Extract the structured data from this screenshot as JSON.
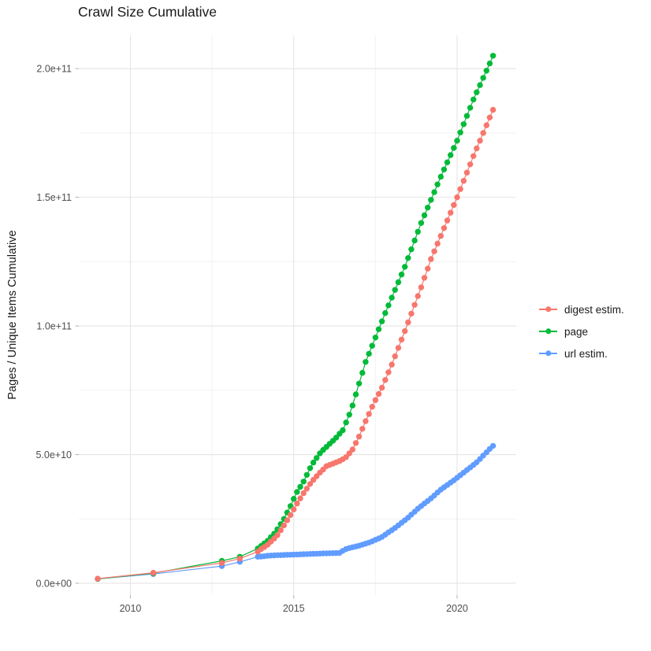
{
  "chart": {
    "title": "Crawl Size Cumulative",
    "ylabel": "Pages / Unique Items Cumulative"
  },
  "chart_data": {
    "type": "scatter",
    "title": "Crawl Size Cumulative",
    "xlabel": "",
    "ylabel": "Pages / Unique Items Cumulative",
    "grid": true,
    "legend_position": "right",
    "value_unit": "1e9 pages (values below are billions)",
    "colors": {
      "grid_major": "#e4e4e4",
      "grid_minor": "#f2f2f2",
      "tick_mark": "#b8b8b8",
      "tick_label": "#4d4d4d",
      "text": "#1a1a1a",
      "background": "#ffffff"
    },
    "x_axis": {
      "domain": [
        2008.42,
        2021.81
      ],
      "major_ticks": [
        {
          "value": 2010,
          "label": "2010"
        },
        {
          "value": 2015,
          "label": "2015"
        },
        {
          "value": 2020,
          "label": "2020"
        }
      ],
      "minor_gridlines": [
        2012.5,
        2017.5
      ]
    },
    "y_axis": {
      "domain": [
        -4.6,
        212.9
      ],
      "major_ticks": [
        {
          "value": 0,
          "label": "0.0e+00"
        },
        {
          "value": 50,
          "label": "5.0e+10"
        },
        {
          "value": 100,
          "label": "1.0e+11"
        },
        {
          "value": 150,
          "label": "1.5e+11"
        },
        {
          "value": 200,
          "label": "2.0e+11"
        }
      ],
      "minor_gridlines": [
        25,
        75,
        125,
        175
      ]
    },
    "z_order": [
      2,
      1,
      0
    ],
    "series": [
      {
        "name": "digest estim.",
        "color": "#F8766D",
        "points": [
          [
            2009,
            1.8
          ],
          [
            2010.7,
            4.1
          ],
          [
            2012.8,
            7.9
          ],
          [
            2013.35,
            9.6
          ],
          [
            2013.9,
            12.3
          ],
          [
            2014.0,
            13.3
          ],
          [
            2014.1,
            14.1
          ],
          [
            2014.2,
            15
          ],
          [
            2014.3,
            16.2
          ],
          [
            2014.4,
            17.4
          ],
          [
            2014.5,
            18.7
          ],
          [
            2014.6,
            20.6
          ],
          [
            2014.7,
            22.5
          ],
          [
            2014.8,
            24.5
          ],
          [
            2014.9,
            26.5
          ],
          [
            2015.0,
            28.7
          ],
          [
            2015.1,
            31
          ],
          [
            2015.2,
            33
          ],
          [
            2015.3,
            35
          ],
          [
            2015.4,
            36.8
          ],
          [
            2015.5,
            38.6
          ],
          [
            2015.6,
            40.2
          ],
          [
            2015.7,
            41.6
          ],
          [
            2015.8,
            43
          ],
          [
            2015.9,
            44.2
          ],
          [
            2016.0,
            45.5
          ],
          [
            2016.1,
            46
          ],
          [
            2016.2,
            46.5
          ],
          [
            2016.3,
            47
          ],
          [
            2016.4,
            47.5
          ],
          [
            2016.5,
            48.2
          ],
          [
            2016.6,
            49
          ],
          [
            2016.7,
            50.5
          ],
          [
            2016.8,
            52
          ],
          [
            2016.9,
            54.5
          ],
          [
            2017.0,
            57
          ],
          [
            2017.1,
            60
          ],
          [
            2017.2,
            63
          ],
          [
            2017.3,
            65.8
          ],
          [
            2017.4,
            68.6
          ],
          [
            2017.5,
            71.2
          ],
          [
            2017.6,
            73.6
          ],
          [
            2017.7,
            76
          ],
          [
            2017.8,
            79
          ],
          [
            2017.9,
            82
          ],
          [
            2018.0,
            85
          ],
          [
            2018.1,
            88.2
          ],
          [
            2018.2,
            91.5
          ],
          [
            2018.3,
            94.7
          ],
          [
            2018.4,
            98
          ],
          [
            2018.5,
            101.4
          ],
          [
            2018.6,
            104.8
          ],
          [
            2018.7,
            108.2
          ],
          [
            2018.8,
            111.6
          ],
          [
            2018.9,
            115
          ],
          [
            2019.0,
            118.7
          ],
          [
            2019.1,
            122.3
          ],
          [
            2019.2,
            126
          ],
          [
            2019.3,
            129
          ],
          [
            2019.4,
            132
          ],
          [
            2019.5,
            135
          ],
          [
            2019.6,
            138
          ],
          [
            2019.7,
            141
          ],
          [
            2019.8,
            144
          ],
          [
            2019.9,
            147
          ],
          [
            2020.0,
            150
          ],
          [
            2020.1,
            153.2
          ],
          [
            2020.2,
            156.4
          ],
          [
            2020.3,
            159.6
          ],
          [
            2020.4,
            162.8
          ],
          [
            2020.5,
            166
          ],
          [
            2020.6,
            169
          ],
          [
            2020.7,
            172
          ],
          [
            2020.8,
            175
          ],
          [
            2020.9,
            178
          ],
          [
            2021.0,
            181
          ],
          [
            2021.1,
            184
          ]
        ]
      },
      {
        "name": "page",
        "color": "#00BA38",
        "points": [
          [
            2009,
            1.7
          ],
          [
            2010.7,
            3.9
          ],
          [
            2012.8,
            8.7
          ],
          [
            2013.35,
            10.3
          ],
          [
            2013.9,
            13.5
          ],
          [
            2014.0,
            14.5
          ],
          [
            2014.1,
            15.5
          ],
          [
            2014.2,
            16.5
          ],
          [
            2014.3,
            17.9
          ],
          [
            2014.4,
            19.3
          ],
          [
            2014.5,
            21
          ],
          [
            2014.6,
            23
          ],
          [
            2014.7,
            25
          ],
          [
            2014.8,
            27.5
          ],
          [
            2014.9,
            30
          ],
          [
            2015.0,
            32.8
          ],
          [
            2015.1,
            35.5
          ],
          [
            2015.2,
            37.5
          ],
          [
            2015.3,
            39.5
          ],
          [
            2015.4,
            42.1
          ],
          [
            2015.5,
            44.7
          ],
          [
            2015.6,
            46.9
          ],
          [
            2015.7,
            48.7
          ],
          [
            2015.8,
            50.5
          ],
          [
            2015.9,
            51.8
          ],
          [
            2016.0,
            53
          ],
          [
            2016.1,
            54.2
          ],
          [
            2016.2,
            55.4
          ],
          [
            2016.3,
            56.6
          ],
          [
            2016.4,
            58.1
          ],
          [
            2016.5,
            59.5
          ],
          [
            2016.6,
            62.5
          ],
          [
            2016.7,
            65.5
          ],
          [
            2016.8,
            69.1
          ],
          [
            2016.9,
            73.4
          ],
          [
            2017.0,
            77.6
          ],
          [
            2017.1,
            81.8
          ],
          [
            2017.2,
            86
          ],
          [
            2017.3,
            89.2
          ],
          [
            2017.4,
            92.3
          ],
          [
            2017.5,
            95.5
          ],
          [
            2017.6,
            98.7
          ],
          [
            2017.7,
            101.8
          ],
          [
            2017.8,
            105
          ],
          [
            2017.9,
            108
          ],
          [
            2018.0,
            111
          ],
          [
            2018.1,
            114
          ],
          [
            2018.2,
            117
          ],
          [
            2018.3,
            120
          ],
          [
            2018.4,
            123
          ],
          [
            2018.5,
            126.4
          ],
          [
            2018.6,
            129.8
          ],
          [
            2018.7,
            133.2
          ],
          [
            2018.8,
            136.6
          ],
          [
            2018.9,
            140
          ],
          [
            2019.0,
            143
          ],
          [
            2019.1,
            146
          ],
          [
            2019.2,
            149
          ],
          [
            2019.3,
            152
          ],
          [
            2019.4,
            155
          ],
          [
            2019.5,
            158
          ],
          [
            2019.6,
            160.8
          ],
          [
            2019.7,
            163.6
          ],
          [
            2019.8,
            166.4
          ],
          [
            2019.9,
            169.2
          ],
          [
            2020.0,
            172
          ],
          [
            2020.1,
            175.2
          ],
          [
            2020.2,
            178.4
          ],
          [
            2020.3,
            181.6
          ],
          [
            2020.4,
            184.8
          ],
          [
            2020.5,
            188
          ],
          [
            2020.6,
            190.8
          ],
          [
            2020.7,
            193.6
          ],
          [
            2020.8,
            196.4
          ],
          [
            2020.9,
            199.2
          ],
          [
            2021.0,
            202
          ],
          [
            2021.1,
            205
          ]
        ]
      },
      {
        "name": "url estim.",
        "color": "#619CFF",
        "points": [
          [
            2009,
            1.7
          ],
          [
            2010.7,
            3.6
          ],
          [
            2012.8,
            6.7
          ],
          [
            2013.35,
            8.3
          ],
          [
            2013.9,
            10.3
          ],
          [
            2014.0,
            10.4
          ],
          [
            2014.1,
            10.5
          ],
          [
            2014.2,
            10.7
          ],
          [
            2014.3,
            10.8
          ],
          [
            2014.4,
            10.85
          ],
          [
            2014.5,
            10.9
          ],
          [
            2014.6,
            10.95
          ],
          [
            2014.7,
            11
          ],
          [
            2014.8,
            11.05
          ],
          [
            2014.9,
            11.1
          ],
          [
            2015.0,
            11.15
          ],
          [
            2015.1,
            11.2
          ],
          [
            2015.2,
            11.25
          ],
          [
            2015.3,
            11.3
          ],
          [
            2015.4,
            11.35
          ],
          [
            2015.5,
            11.4
          ],
          [
            2015.6,
            11.45
          ],
          [
            2015.7,
            11.5
          ],
          [
            2015.8,
            11.55
          ],
          [
            2015.9,
            11.6
          ],
          [
            2016.0,
            11.63
          ],
          [
            2016.1,
            11.67
          ],
          [
            2016.2,
            11.7
          ],
          [
            2016.3,
            11.75
          ],
          [
            2016.4,
            11.8
          ],
          [
            2016.5,
            12.6
          ],
          [
            2016.6,
            13.3
          ],
          [
            2016.7,
            13.7
          ],
          [
            2016.8,
            14
          ],
          [
            2016.9,
            14.3
          ],
          [
            2017.0,
            14.6
          ],
          [
            2017.1,
            15
          ],
          [
            2017.2,
            15.4
          ],
          [
            2017.3,
            15.8
          ],
          [
            2017.4,
            16.3
          ],
          [
            2017.5,
            16.9
          ],
          [
            2017.6,
            17.4
          ],
          [
            2017.7,
            18
          ],
          [
            2017.8,
            18.9
          ],
          [
            2017.9,
            19.8
          ],
          [
            2018.0,
            20.6
          ],
          [
            2018.1,
            21.5
          ],
          [
            2018.2,
            22.5
          ],
          [
            2018.3,
            23.5
          ],
          [
            2018.4,
            24.5
          ],
          [
            2018.5,
            25.5
          ],
          [
            2018.6,
            26.7
          ],
          [
            2018.7,
            27.8
          ],
          [
            2018.8,
            29
          ],
          [
            2018.9,
            30
          ],
          [
            2019.0,
            31
          ],
          [
            2019.1,
            32
          ],
          [
            2019.2,
            33
          ],
          [
            2019.3,
            34.1
          ],
          [
            2019.4,
            35.3
          ],
          [
            2019.5,
            36.4
          ],
          [
            2019.6,
            37.3
          ],
          [
            2019.7,
            38.2
          ],
          [
            2019.8,
            39.1
          ],
          [
            2019.9,
            40
          ],
          [
            2020.0,
            41
          ],
          [
            2020.1,
            42
          ],
          [
            2020.2,
            43
          ],
          [
            2020.3,
            44
          ],
          [
            2020.4,
            45
          ],
          [
            2020.5,
            46
          ],
          [
            2020.6,
            47
          ],
          [
            2020.7,
            48.3
          ],
          [
            2020.8,
            49.6
          ],
          [
            2020.9,
            50.9
          ],
          [
            2021.0,
            52.2
          ],
          [
            2021.1,
            53.4
          ]
        ]
      }
    ]
  }
}
